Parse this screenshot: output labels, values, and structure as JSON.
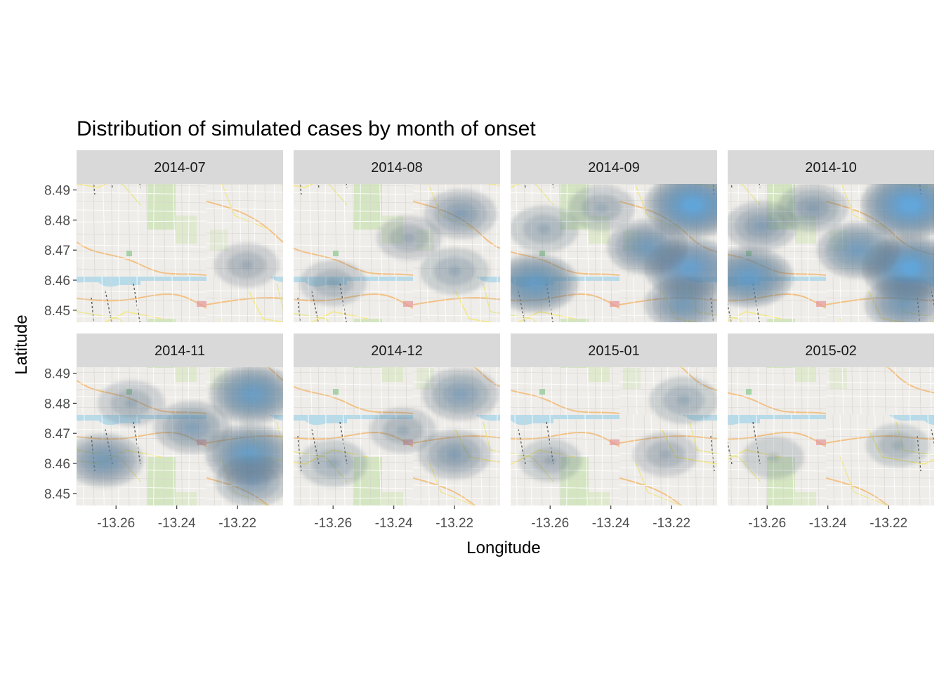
{
  "chart_data": {
    "type": "heatmap",
    "subtype": "faceted 2D density contours over street map",
    "title": "Distribution of simulated cases by month of onset",
    "xlabel": "Longitude",
    "ylabel": "Latitude",
    "xlim": [
      -13.273,
      -13.205
    ],
    "ylim": [
      8.446,
      8.492
    ],
    "x_ticks": [
      -13.26,
      -13.24,
      -13.22
    ],
    "x_tick_labels": [
      "-13.26",
      "-13.24",
      "-13.22"
    ],
    "y_ticks": [
      8.45,
      8.46,
      8.47,
      8.48,
      8.49
    ],
    "y_tick_labels": [
      "8.45",
      "8.46",
      "8.47",
      "8.48",
      "8.49"
    ],
    "facet_layout": {
      "rows": 2,
      "cols": 4
    },
    "colors": {
      "low_density": "#5c6f80",
      "high_density": "#56b1f7",
      "strip": "#d9d9d9"
    },
    "facets": [
      {
        "label": "2014-07",
        "hotspots": [
          {
            "lon": -13.217,
            "lat": 8.465,
            "level": 0.15
          }
        ]
      },
      {
        "label": "2014-08",
        "hotspots": [
          {
            "lon": -13.218,
            "lat": 8.482,
            "level": 0.35
          },
          {
            "lon": -13.22,
            "lat": 8.463,
            "level": 0.25
          },
          {
            "lon": -13.26,
            "lat": 8.459,
            "level": 0.2
          },
          {
            "lon": -13.235,
            "lat": 8.474,
            "level": 0.15
          }
        ]
      },
      {
        "label": "2014-09",
        "hotspots": [
          {
            "lon": -13.213,
            "lat": 8.485,
            "level": 0.95
          },
          {
            "lon": -13.214,
            "lat": 8.464,
            "level": 0.8
          },
          {
            "lon": -13.265,
            "lat": 8.459,
            "level": 0.7
          },
          {
            "lon": -13.228,
            "lat": 8.471,
            "level": 0.55
          },
          {
            "lon": -13.216,
            "lat": 8.452,
            "level": 0.5
          },
          {
            "lon": -13.262,
            "lat": 8.477,
            "level": 0.25
          },
          {
            "lon": -13.243,
            "lat": 8.484,
            "level": 0.2
          }
        ]
      },
      {
        "label": "2014-10",
        "hotspots": [
          {
            "lon": -13.213,
            "lat": 8.485,
            "level": 1.0
          },
          {
            "lon": -13.213,
            "lat": 8.464,
            "level": 0.95
          },
          {
            "lon": -13.266,
            "lat": 8.461,
            "level": 0.75
          },
          {
            "lon": -13.23,
            "lat": 8.47,
            "level": 0.6
          },
          {
            "lon": -13.215,
            "lat": 8.452,
            "level": 0.5
          },
          {
            "lon": -13.262,
            "lat": 8.478,
            "level": 0.35
          },
          {
            "lon": -13.245,
            "lat": 8.484,
            "level": 0.3
          }
        ]
      },
      {
        "label": "2014-11",
        "hotspots": [
          {
            "lon": -13.215,
            "lat": 8.483,
            "level": 0.7
          },
          {
            "lon": -13.216,
            "lat": 8.463,
            "level": 0.75
          },
          {
            "lon": -13.264,
            "lat": 8.461,
            "level": 0.5
          },
          {
            "lon": -13.235,
            "lat": 8.472,
            "level": 0.45
          },
          {
            "lon": -13.215,
            "lat": 8.454,
            "level": 0.4
          },
          {
            "lon": -13.255,
            "lat": 8.48,
            "level": 0.2
          }
        ]
      },
      {
        "label": "2014-12",
        "hotspots": [
          {
            "lon": -13.218,
            "lat": 8.483,
            "level": 0.45
          },
          {
            "lon": -13.22,
            "lat": 8.463,
            "level": 0.35
          },
          {
            "lon": -13.26,
            "lat": 8.46,
            "level": 0.25
          },
          {
            "lon": -13.237,
            "lat": 8.471,
            "level": 0.2
          }
        ]
      },
      {
        "label": "2015-01",
        "hotspots": [
          {
            "lon": -13.216,
            "lat": 8.481,
            "level": 0.25
          },
          {
            "lon": -13.222,
            "lat": 8.463,
            "level": 0.15
          },
          {
            "lon": -13.26,
            "lat": 8.461,
            "level": 0.1
          }
        ]
      },
      {
        "label": "2015-02",
        "hotspots": [
          {
            "lon": -13.217,
            "lat": 8.466,
            "level": 0.12
          },
          {
            "lon": -13.258,
            "lat": 8.462,
            "level": 0.08
          }
        ]
      }
    ]
  }
}
